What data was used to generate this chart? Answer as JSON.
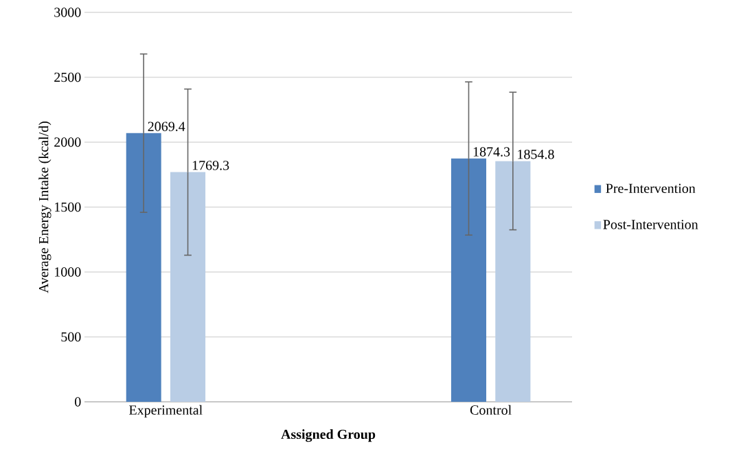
{
  "chart_data": {
    "type": "bar",
    "xlabel": "Assigned Group",
    "ylabel": "Average Energy Intake (kcal/d)",
    "categories": [
      "Experimental",
      "Control"
    ],
    "series": [
      {
        "name": "Pre-Intervention",
        "color": "#4f81bd",
        "values": [
          2069.4,
          1874.3
        ],
        "errors": [
          610,
          590
        ]
      },
      {
        "name": "Post-Intervention",
        "color": "#b9cde5",
        "values": [
          1769.3,
          1854.8
        ],
        "errors": [
          640,
          530
        ]
      }
    ],
    "ylim": [
      0,
      3000
    ],
    "yticks": [
      0,
      500,
      1000,
      1500,
      2000,
      2500,
      3000
    ],
    "grid": "y",
    "legend": "right",
    "data_labels": true
  }
}
